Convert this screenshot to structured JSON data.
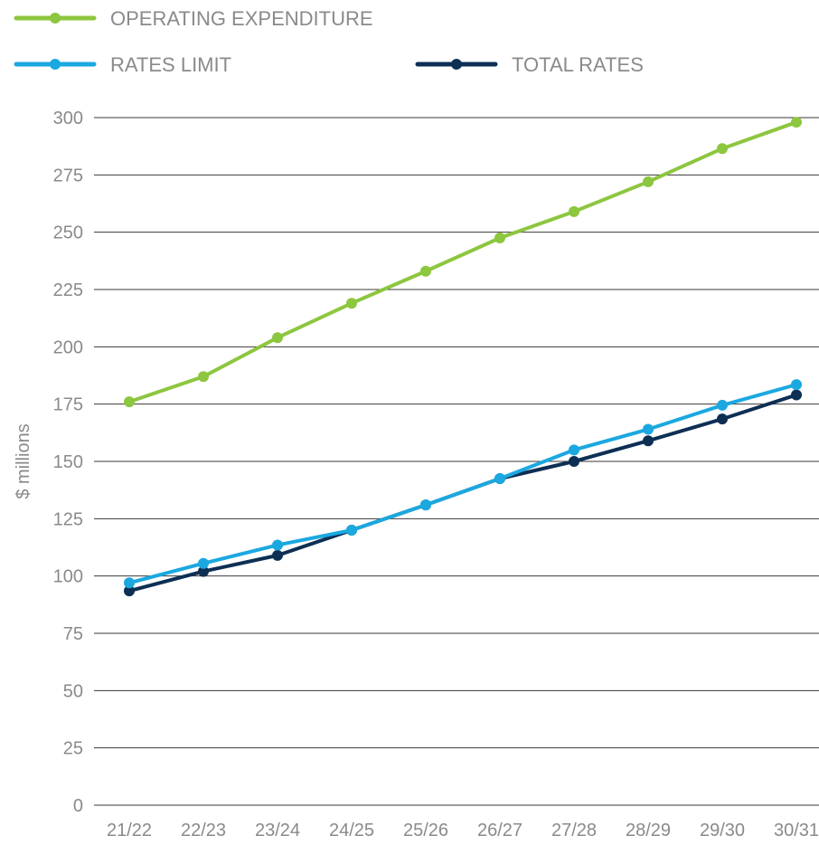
{
  "chart_data": {
    "type": "line",
    "categories": [
      "21/22",
      "22/23",
      "23/24",
      "24/25",
      "25/26",
      "26/27",
      "27/28",
      "28/29",
      "29/30",
      "30/31"
    ],
    "series": [
      {
        "name": "OPERATING EXPENDITURE",
        "color": "#8dc63f",
        "values": [
          176,
          187,
          204,
          219,
          233,
          247.5,
          259,
          272,
          286.5,
          298
        ]
      },
      {
        "name": "RATES LIMIT",
        "color": "#1ba8e0",
        "values": [
          97,
          105.5,
          113.5,
          120,
          131,
          142.5,
          155,
          164,
          174.5,
          183.5
        ]
      },
      {
        "name": "TOTAL RATES",
        "color": "#0d2f54",
        "values": [
          93.5,
          102,
          109,
          120,
          131,
          142.5,
          150,
          159,
          168.5,
          179
        ]
      }
    ],
    "ylabel": "$ millions",
    "ylim": [
      0,
      300
    ],
    "yticks": [
      0,
      25,
      50,
      75,
      100,
      125,
      150,
      175,
      200,
      225,
      250,
      275,
      300
    ],
    "grid": true,
    "legend_position": "top"
  }
}
